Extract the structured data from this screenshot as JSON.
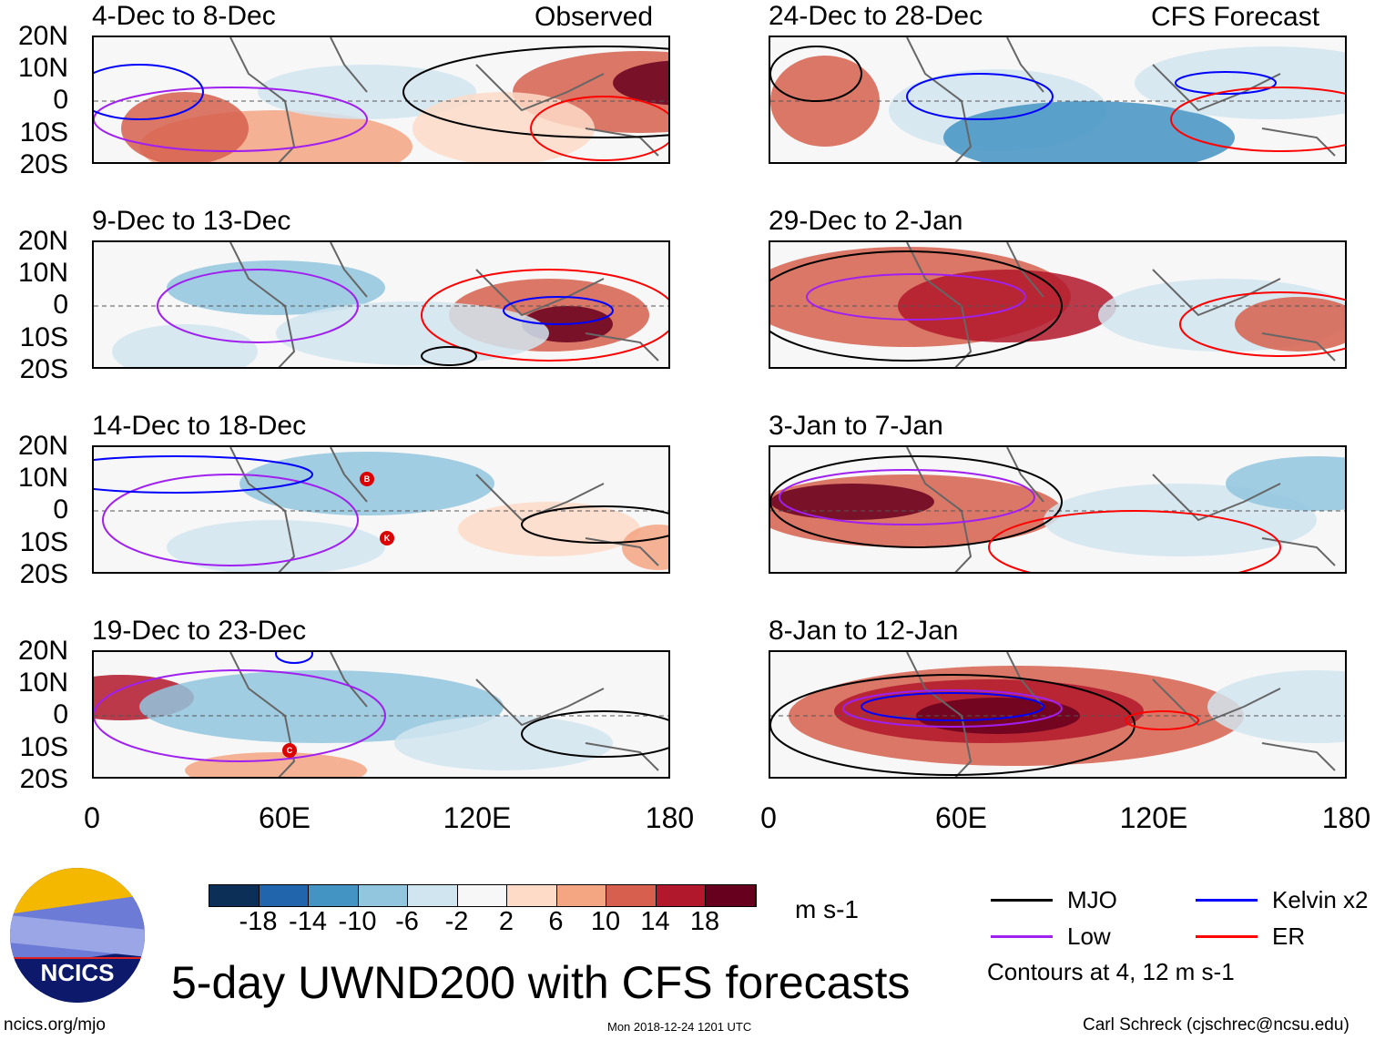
{
  "title": "5-day UWND200 with CFS forecasts",
  "logo_text": "NCICS",
  "url": "ncics.org/mjo",
  "timestamp": "Mon 2018-12-24 1201 UTC",
  "author": "Carl Schreck (cjschrec@ncsu.edu)",
  "columns": {
    "left_label": "Observed",
    "right_label": "CFS Forecast"
  },
  "lat_labels": [
    "20N",
    "10N",
    "0",
    "10S",
    "20S"
  ],
  "lon_labels": [
    "0",
    "60E",
    "120E",
    "180"
  ],
  "panels_left": [
    {
      "title": "4-Dec to 8-Dec"
    },
    {
      "title": "9-Dec to 13-Dec"
    },
    {
      "title": "14-Dec to 18-Dec",
      "storms": [
        "B",
        "K"
      ]
    },
    {
      "title": "19-Dec to 23-Dec",
      "storms": [
        "C"
      ]
    }
  ],
  "panels_right": [
    {
      "title": "24-Dec to 28-Dec"
    },
    {
      "title": "29-Dec to 2-Jan"
    },
    {
      "title": "3-Jan to 7-Jan"
    },
    {
      "title": "8-Jan to 12-Jan"
    }
  ],
  "colorbar": {
    "colors": [
      "#0b2f57",
      "#2166ac",
      "#4393c3",
      "#92c5de",
      "#d1e5f0",
      "#f7f7f7",
      "#fddbc7",
      "#f4a582",
      "#d6604d",
      "#b2182b",
      "#67001f"
    ],
    "labels": [
      "-18",
      "-14",
      "-10",
      "-6",
      "-2",
      "2",
      "6",
      "10",
      "14",
      "18"
    ],
    "units": "m s-1"
  },
  "legend": {
    "items": [
      {
        "label": "MJO",
        "color": "#000000"
      },
      {
        "label": "Kelvin x2",
        "color": "#0000ff"
      },
      {
        "label": "Low",
        "color": "#a020f0"
      },
      {
        "label": "ER",
        "color": "#ff0000"
      }
    ],
    "note": "Contours at 4, 12 m s-1"
  }
}
